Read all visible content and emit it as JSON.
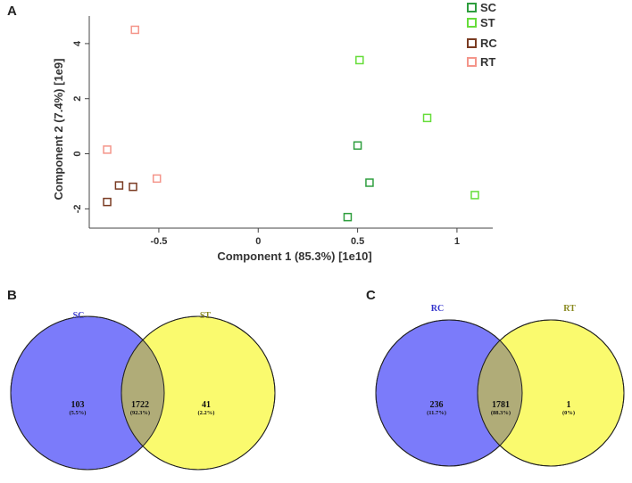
{
  "panels": {
    "a": "A",
    "b": "B",
    "c": "C"
  },
  "chart_data": [
    {
      "type": "scatter",
      "title": "",
      "xlabel": "Component 1 (85.3%) [1e10]",
      "ylabel": "Component 2 (7.4%) [1e9]",
      "xlim": [
        -0.85,
        1.18
      ],
      "ylim": [
        -2.7,
        5.0
      ],
      "xticks": [
        -0.5,
        0,
        0.5,
        1
      ],
      "xtick_labels": [
        "-0.5",
        "0",
        "0.5",
        "1"
      ],
      "yticks": [
        -2,
        0,
        2,
        4
      ],
      "ytick_labels": [
        "-2",
        "0",
        "2",
        "4"
      ],
      "legend_position": "top-right",
      "series": [
        {
          "name": "SC",
          "color": "#2e9e3e",
          "points": [
            [
              0.5,
              0.3
            ],
            [
              0.56,
              -1.05
            ],
            [
              0.45,
              -2.3
            ]
          ]
        },
        {
          "name": "ST",
          "color": "#66dd3a",
          "points": [
            [
              0.51,
              3.4
            ],
            [
              0.85,
              1.3
            ],
            [
              1.09,
              -1.5
            ]
          ]
        },
        {
          "name": "RC",
          "color": "#7a3b22",
          "points": [
            [
              -0.76,
              -1.75
            ],
            [
              -0.7,
              -1.15
            ],
            [
              -0.63,
              -1.2
            ]
          ]
        },
        {
          "name": "RT",
          "color": "#f4958a",
          "points": [
            [
              -0.62,
              4.5
            ],
            [
              -0.76,
              0.15
            ],
            [
              -0.51,
              -0.9
            ]
          ]
        }
      ]
    },
    {
      "type": "venn",
      "sets": [
        {
          "name": "SC",
          "color": "#7b7bfa",
          "label_color": "#3333cc",
          "only_count": "103",
          "only_pct": "(5.5%)"
        },
        {
          "name": "ST",
          "color": "#fafa6e",
          "label_color": "#8a8a20",
          "only_count": "41",
          "only_pct": "(2.2%)"
        }
      ],
      "overlap": {
        "count": "1722",
        "pct": "(92.3%)",
        "color": "#b0ac78"
      }
    },
    {
      "type": "venn",
      "sets": [
        {
          "name": "RC",
          "color": "#7b7bfa",
          "label_color": "#3333cc",
          "only_count": "236",
          "only_pct": "(11.7%)"
        },
        {
          "name": "RT",
          "color": "#fafa6e",
          "label_color": "#8a8a20",
          "only_count": "1",
          "only_pct": "(0%)"
        }
      ],
      "overlap": {
        "count": "1781",
        "pct": "(88.3%)",
        "color": "#b0ac78"
      }
    }
  ]
}
